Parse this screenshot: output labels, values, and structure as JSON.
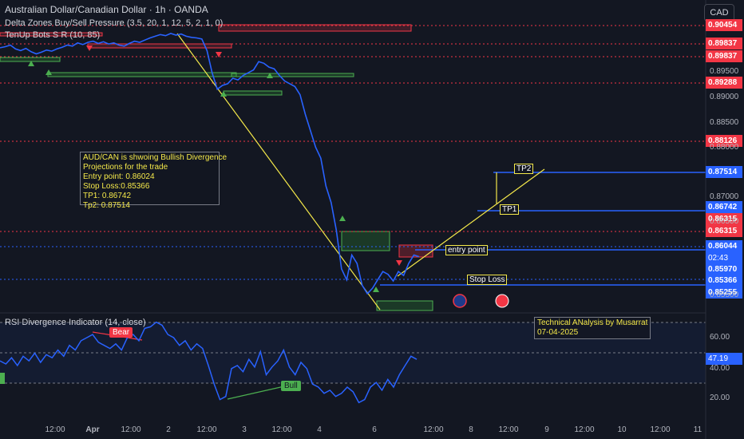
{
  "header": {
    "title": "Australian Dollar/Canadian Dollar · 1h · OANDA",
    "indicator1": "Delta Zones Buy/Sell Pressure (3.5, 20, 1, 12, 5, 2, 1, 0)",
    "indicator2": "TenUp Bots S R (10, 85)",
    "currency_button": "CAD"
  },
  "annotations": {
    "analysis_note": "AUD/CAN is shwoing Bullish Divergence\nProjections for the trade\nEntry point: 0.86024\nStop Loss:0.85366\nTP1: 0.86742\nTp2: 0.87514",
    "tp2": "TP2",
    "tp1": "TP1",
    "entry": "entry point",
    "stop": "Stop Loss",
    "author": "Technical ANalysis by Musarrat\n07-04-2025",
    "bear": "Bear",
    "bull": "Bull",
    "rsi_title": "RSI Divergence Indicator (14, close)",
    "countdown": "02:43"
  },
  "colors": {
    "background": "#131722",
    "price_line": "#2962ff",
    "resistance": "#f23645",
    "support_blue": "#2962ff",
    "trendline": "#f5e94a",
    "green_zone": "#2e7d32",
    "red_zone": "#f23645"
  },
  "chart_data": [
    {
      "type": "line",
      "title": "Australian Dollar/Canadian Dollar · 1h · OANDA",
      "y_axis_labels": [
        "0.89500",
        "0.89000",
        "0.88500",
        "0.88000",
        "0.87000",
        "0.86500",
        "0.85500"
      ],
      "price_badges": [
        {
          "value": "0.90454",
          "color": "red"
        },
        {
          "value": "0.89837",
          "color": "red"
        },
        {
          "value": "0.89837",
          "color": "red"
        },
        {
          "value": "0.89288",
          "color": "red"
        },
        {
          "value": "0.88126",
          "color": "red"
        },
        {
          "value": "0.87514",
          "color": "blue"
        },
        {
          "value": "0.86742",
          "color": "blue"
        },
        {
          "value": "0.86315",
          "color": "red"
        },
        {
          "value": "0.86315",
          "color": "red"
        },
        {
          "value": "0.86044",
          "color": "blue"
        },
        {
          "value": "0.85970",
          "color": "blue"
        },
        {
          "value": "0.85366",
          "color": "blue"
        },
        {
          "value": "0.85255",
          "color": "blue"
        }
      ],
      "ylim": [
        0.8506,
        0.9055
      ],
      "series": [
        {
          "values": [
            0.898,
            0.8982,
            0.8985,
            0.8978,
            0.8975,
            0.8979,
            0.8973,
            0.8969,
            0.8972,
            0.8976,
            0.8974,
            0.8978,
            0.8981,
            0.8985,
            0.8983,
            0.8989,
            0.8986,
            0.899,
            0.8992,
            0.8988,
            0.8991,
            0.8987,
            0.8989,
            0.8985,
            0.8983,
            0.8988,
            0.8992,
            0.899,
            0.8994,
            0.8998,
            0.9001,
            0.9004,
            0.9002,
            0.9006,
            0.9003,
            0.9005,
            0.9001,
            0.8999,
            0.8998,
            0.8996,
            0.8975,
            0.8935,
            0.8905,
            0.8912,
            0.8915,
            0.8925,
            0.8922,
            0.893,
            0.8935,
            0.894,
            0.8955,
            0.8952,
            0.8945,
            0.8942,
            0.893,
            0.892,
            0.8915,
            0.891,
            0.8895,
            0.886,
            0.883,
            0.88,
            0.878,
            0.873,
            0.87,
            0.865,
            0.858,
            0.856,
            0.8605,
            0.859,
            0.855,
            0.8535,
            0.8545,
            0.856,
            0.8575,
            0.857,
            0.8558,
            0.8575,
            0.8568,
            0.859,
            0.8605,
            0.8602
          ]
        }
      ],
      "x_axis_labels": [
        "12:00",
        "Apr",
        "12:00",
        "2",
        "12:00",
        "3",
        "12:00",
        "4",
        "6",
        "12:00",
        "8",
        "12:00",
        "9",
        "12:00",
        "10",
        "12:00",
        "11"
      ]
    },
    {
      "type": "line",
      "title": "RSI Divergence Indicator (14, close)",
      "y_axis_labels": [
        "60.00",
        "47.19",
        "40.00",
        "20.00"
      ],
      "current_value": "47.19",
      "ylim": [
        11,
        76
      ],
      "series": [
        {
          "values": [
            45,
            43,
            47,
            42,
            48,
            45,
            50,
            44,
            49,
            47,
            52,
            48,
            55,
            52,
            58,
            60,
            62,
            57,
            55,
            53,
            56,
            52,
            60,
            62,
            58,
            66,
            67,
            70,
            68,
            62,
            60,
            55,
            58,
            52,
            56,
            53,
            42,
            30,
            20,
            22,
            40,
            42,
            38,
            46,
            41,
            51,
            36,
            41,
            45,
            52,
            41,
            36,
            44,
            40,
            30,
            28,
            24,
            26,
            22,
            24,
            28,
            25,
            18,
            20,
            28,
            31,
            26,
            33,
            28,
            36,
            42,
            48,
            46
          ]
        }
      ]
    }
  ]
}
